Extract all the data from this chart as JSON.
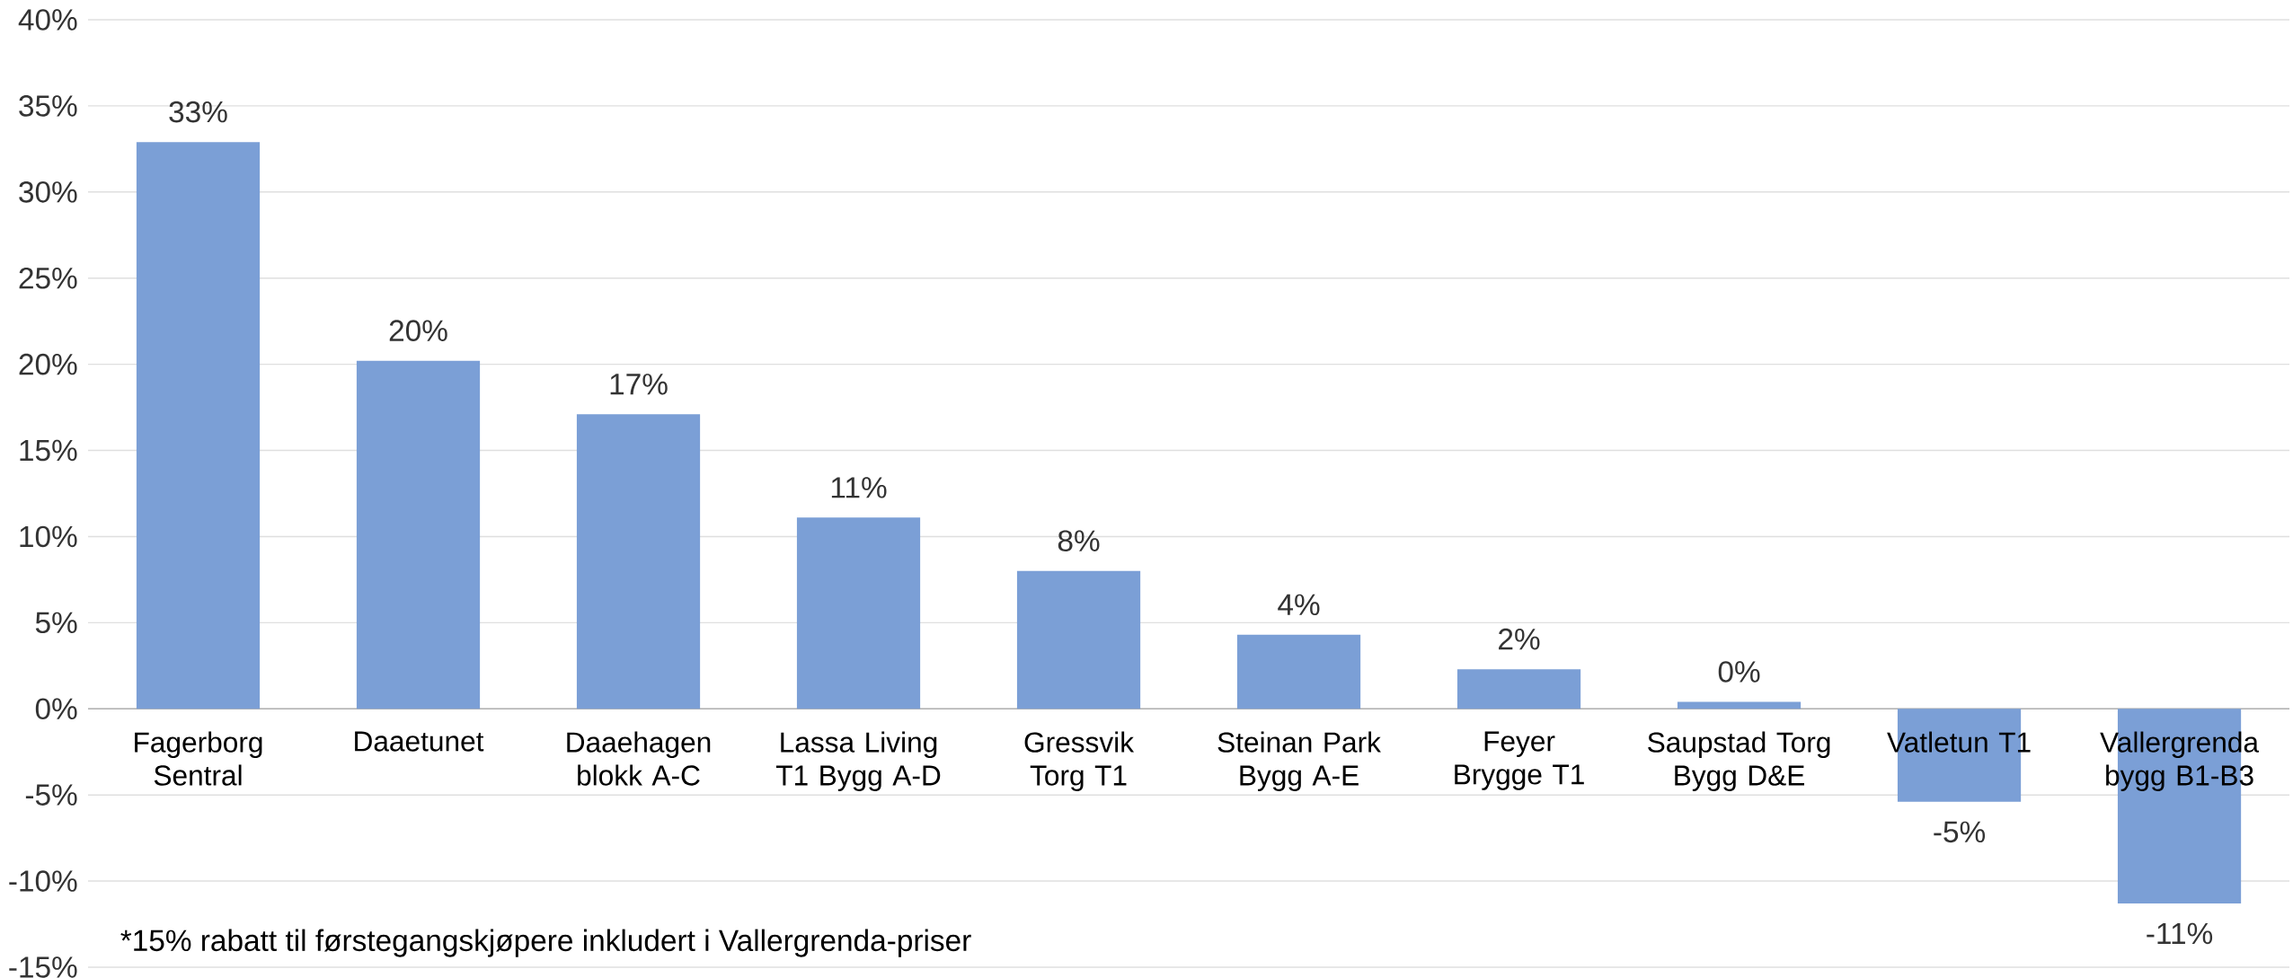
{
  "chart_data": {
    "type": "bar",
    "categories": [
      "Fagerborg Sentral",
      "Daaetunet",
      "Daaehagen blokk A-C",
      "Lassa Living T1 Bygg A-D",
      "Gressvik Torg T1",
      "Steinan Park Bygg A-E",
      "Feyer Brygge T1",
      "Saupstad Torg Bygg D&E",
      "Vatletun T1",
      "Vallergrenda bygg B1-B3"
    ],
    "values": [
      32.9,
      20.2,
      17.1,
      11.1,
      8.0,
      4.3,
      2.3,
      0.4,
      -5.4,
      -11.3
    ],
    "value_labels": [
      "33%",
      "20%",
      "17%",
      "11%",
      "8%",
      "4%",
      "2%",
      "0%",
      "-5%",
      "-11%"
    ],
    "color": "#7b9fd6",
    "ylim": [
      -15,
      40
    ],
    "yticks": [
      {
        "value": -15,
        "label": "-15%"
      },
      {
        "value": -10,
        "label": "-10%"
      },
      {
        "value": -5,
        "label": "-5%"
      },
      {
        "value": 0,
        "label": "0%"
      },
      {
        "value": 5,
        "label": "5%"
      },
      {
        "value": 10,
        "label": "10%"
      },
      {
        "value": 15,
        "label": "15%"
      },
      {
        "value": 20,
        "label": "20%"
      },
      {
        "value": 25,
        "label": "25%"
      },
      {
        "value": 30,
        "label": "30%"
      },
      {
        "value": 35,
        "label": "35%"
      },
      {
        "value": 40,
        "label": "40%"
      }
    ],
    "grid": "y",
    "annotations": [
      "*15% rabatt til førstegangskjøpere inkludert i Vallergrenda-priser"
    ]
  }
}
